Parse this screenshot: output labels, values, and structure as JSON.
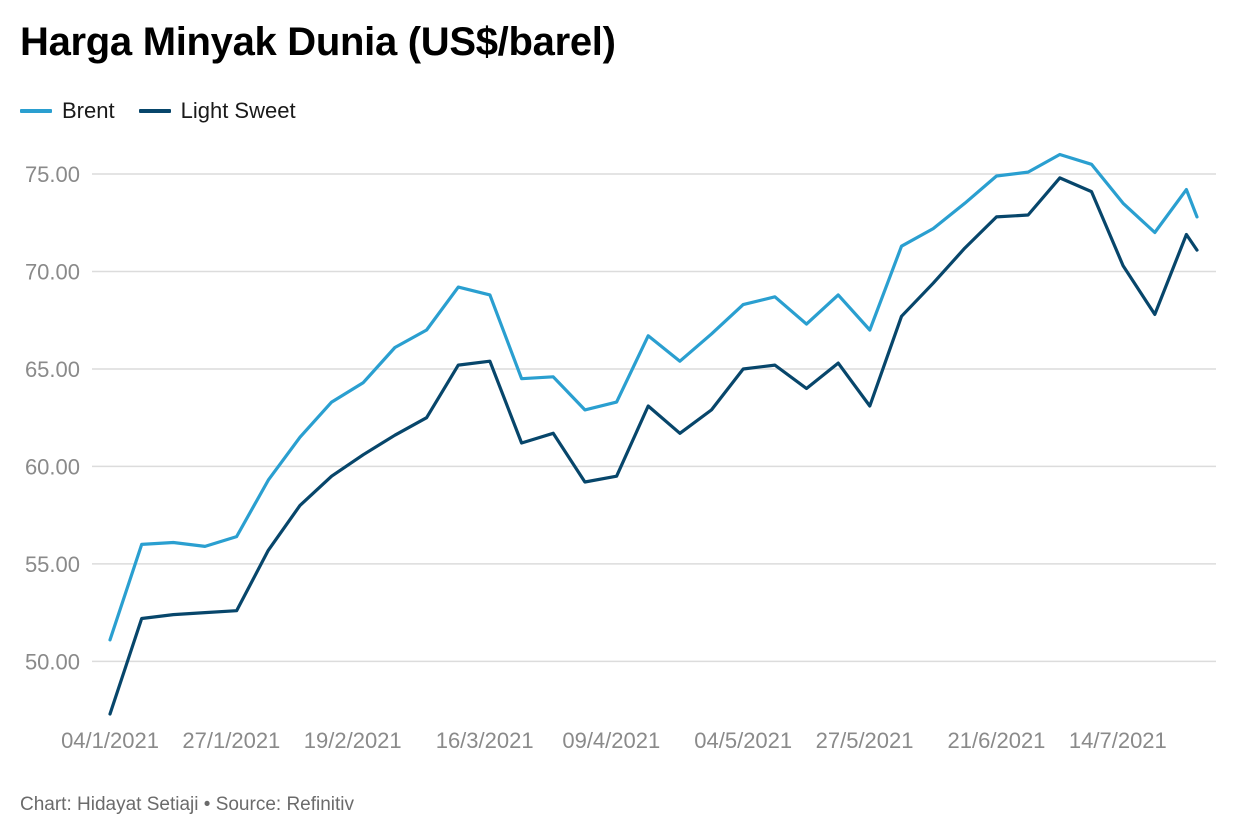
{
  "title": "Harga Minyak Dunia (US$/barel)",
  "footer": {
    "credit": "Chart: Hidayat Setiaji",
    "separator": "•",
    "source": "Source: Refinitiv"
  },
  "colors": {
    "brent": "#2a9fd0",
    "light_sweet": "#07466b",
    "grid": "#dcdcdc",
    "tick": "#8a8a8a"
  },
  "chart_data": {
    "type": "line",
    "title": "Harga Minyak Dunia (US$/barel)",
    "legend_position": "top-left",
    "grid": true,
    "ylim": [
      47.3,
      76.9
    ],
    "xlim": [
      "04/1/2021",
      "29/7/2021"
    ],
    "y_ticks": [
      "50.00",
      "55.00",
      "60.00",
      "65.00",
      "70.00",
      "75.00"
    ],
    "x_ticks": [
      "04/1/2021",
      "27/1/2021",
      "19/2/2021",
      "16/3/2021",
      "09/4/2021",
      "04/5/2021",
      "27/5/2021",
      "21/6/2021",
      "14/7/2021"
    ],
    "x": [
      "04/1/2021",
      "10/1/2021",
      "16/1/2021",
      "22/1/2021",
      "28/1/2021",
      "03/2/2021",
      "09/2/2021",
      "15/2/2021",
      "21/2/2021",
      "27/2/2021",
      "05/3/2021",
      "11/3/2021",
      "17/3/2021",
      "23/3/2021",
      "29/3/2021",
      "04/4/2021",
      "10/4/2021",
      "16/4/2021",
      "22/4/2021",
      "28/4/2021",
      "04/5/2021",
      "10/5/2021",
      "16/5/2021",
      "22/5/2021",
      "28/5/2021",
      "03/6/2021",
      "09/6/2021",
      "15/6/2021",
      "21/6/2021",
      "27/6/2021",
      "03/7/2021",
      "09/7/2021",
      "15/7/2021",
      "21/7/2021",
      "27/7/2021",
      "29/7/2021"
    ],
    "series": [
      {
        "name": "Brent",
        "color": "#2a9fd0",
        "values": [
          51.1,
          56.0,
          56.1,
          55.9,
          56.4,
          59.3,
          61.5,
          63.3,
          64.3,
          66.1,
          67.0,
          69.2,
          68.8,
          64.5,
          64.6,
          62.9,
          63.3,
          66.7,
          65.4,
          66.8,
          68.3,
          68.7,
          67.3,
          68.8,
          67.0,
          71.3,
          72.2,
          73.5,
          74.9,
          75.1,
          76.0,
          75.5,
          73.5,
          72.0,
          74.2,
          72.8
        ]
      },
      {
        "name": "Light Sweet",
        "color": "#07466b",
        "values": [
          47.3,
          52.2,
          52.4,
          52.5,
          52.6,
          55.7,
          58.0,
          59.5,
          60.6,
          61.6,
          62.5,
          65.2,
          65.4,
          61.2,
          61.7,
          59.2,
          59.5,
          63.1,
          61.7,
          62.9,
          65.0,
          65.2,
          64.0,
          65.3,
          63.1,
          67.7,
          69.4,
          71.2,
          72.8,
          72.9,
          74.8,
          74.1,
          70.3,
          67.8,
          71.9,
          71.1
        ]
      }
    ]
  }
}
